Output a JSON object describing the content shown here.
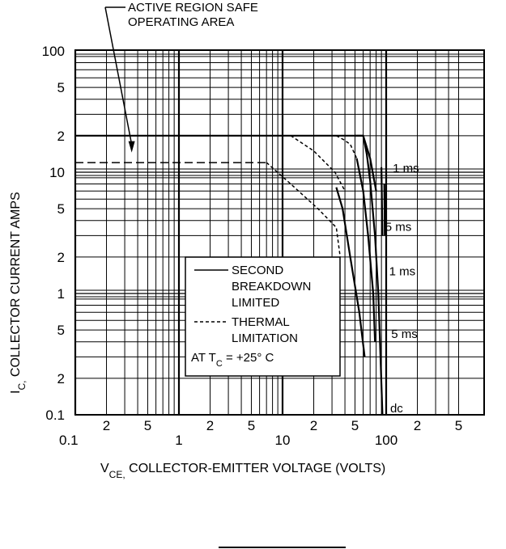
{
  "chart_data": {
    "type": "line",
    "title": "",
    "xlabel": {
      "main": "V",
      "sub": "CE,",
      "rest": " COLLECTOR-EMITTER VOLTAGE (VOLTS)"
    },
    "ylabel": {
      "main": "I",
      "sub": "C,",
      "rest": " COLLECTOR CURRENT AMPS"
    },
    "x_scale": "log",
    "y_scale": "log",
    "xlim": [
      0.1,
      250
    ],
    "ylim": [
      0.1,
      100
    ],
    "x_tick_labels": [
      {
        "v": 0.1,
        "t": "0.1",
        "row": "lo"
      },
      {
        "v": 0.2,
        "t": "2",
        "row": "hi"
      },
      {
        "v": 0.5,
        "t": "5",
        "row": "hi"
      },
      {
        "v": 1,
        "t": "1",
        "row": "lo"
      },
      {
        "v": 2,
        "t": "2",
        "row": "hi"
      },
      {
        "v": 5,
        "t": "5",
        "row": "hi"
      },
      {
        "v": 10,
        "t": "10",
        "row": "lo"
      },
      {
        "v": 20,
        "t": "2",
        "row": "hi"
      },
      {
        "v": 50,
        "t": "5",
        "row": "hi"
      },
      {
        "v": 100,
        "t": "100",
        "row": "lo"
      },
      {
        "v": 200,
        "t": "2",
        "row": "hi"
      },
      {
        "v": 500,
        "t": "5",
        "row": "hi"
      }
    ],
    "y_tick_labels": [
      {
        "v": 100,
        "t": "100"
      },
      {
        "v": 50,
        "t": "5"
      },
      {
        "v": 20,
        "t": "2"
      },
      {
        "v": 10,
        "t": "10"
      },
      {
        "v": 5,
        "t": "5"
      },
      {
        "v": 2,
        "t": "2"
      },
      {
        "v": 1,
        "t": "1"
      },
      {
        "v": 0.5,
        "t": "5"
      },
      {
        "v": 0.2,
        "t": "2"
      },
      {
        "v": 0.1,
        "t": "0.1"
      }
    ],
    "series": [
      {
        "style": "long-dash",
        "x": [
          0.1,
          7
        ],
        "y": [
          12,
          12
        ]
      },
      {
        "style": "solid",
        "x": [
          0.1,
          60
        ],
        "y": [
          20,
          20
        ]
      },
      {
        "style": "dashed",
        "x": [
          7,
          12,
          22,
          33,
          36
        ],
        "y": [
          12,
          8,
          5,
          3.5,
          2
        ]
      },
      {
        "style": "dashed",
        "x": [
          12,
          20,
          32,
          40
        ],
        "y": [
          20,
          15,
          10,
          7
        ]
      },
      {
        "style": "dashed",
        "x": [
          33,
          39,
          45,
          52
        ],
        "y": [
          20,
          18.5,
          17,
          13
        ]
      },
      {
        "style": "solid",
        "x": [
          33,
          38,
          45
        ],
        "y": [
          7.5,
          5,
          2
        ]
      },
      {
        "style": "solid",
        "x": [
          45,
          55,
          62
        ],
        "y": [
          2,
          0.7,
          0.3
        ]
      },
      {
        "style": "solid",
        "x": [
          52,
          60,
          67,
          75,
          78
        ],
        "y": [
          13,
          7,
          3,
          1,
          0.4
        ]
      },
      {
        "style": "solid",
        "x": [
          60,
          65,
          70,
          78,
          84,
          92
        ],
        "y": [
          20,
          14,
          8.5,
          3,
          1,
          0.1
        ]
      },
      {
        "style": "solid",
        "x": [
          50,
          60,
          70,
          80
        ],
        "y": [
          20,
          20,
          13,
          7
        ]
      },
      {
        "style": "solid",
        "x": [
          90,
          92
        ],
        "y": [
          11,
          3
        ]
      },
      {
        "style": "solid",
        "x": [
          96,
          97
        ],
        "y": [
          8,
          3
        ]
      }
    ],
    "curve_labels": [
      {
        "x": 90,
        "y": 11,
        "t": "1 ms"
      },
      {
        "x": 76,
        "y": 3.6,
        "t": "5 ms"
      },
      {
        "x": 83,
        "y": 1.55,
        "t": "1 ms"
      },
      {
        "x": 87,
        "y": 0.47,
        "t": "5 ms"
      },
      {
        "x": 85,
        "y": 0.115,
        "t": "dc"
      }
    ],
    "legend": {
      "solid": [
        "SECOND",
        "BREAKDOWN",
        "LIMITED"
      ],
      "dashed": [
        "THERMAL",
        "LIMITATION"
      ],
      "condition": {
        "prefix": "AT T",
        "sub": "C",
        "suffix": " = +25° C"
      }
    },
    "annotation": {
      "lines": [
        "ACTIVE REGION SAFE",
        "OPERATING AREA"
      ],
      "arrow_to": {
        "x": 0.35,
        "y": 15
      }
    },
    "grid": true
  }
}
